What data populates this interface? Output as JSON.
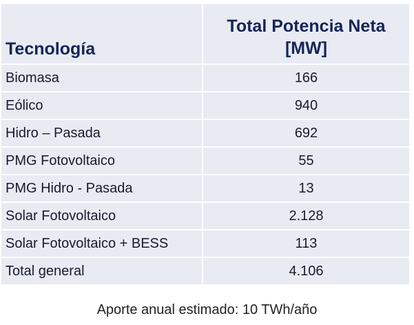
{
  "table": {
    "headers": [
      "Tecnología",
      "Total Potencia Neta [MW]"
    ],
    "rows": [
      {
        "tech": "Biomasa",
        "mw": "166"
      },
      {
        "tech": "Eólico",
        "mw": "940"
      },
      {
        "tech": "Hidro – Pasada",
        "mw": "692"
      },
      {
        "tech": "PMG Fotovoltaico",
        "mw": "55"
      },
      {
        "tech": "PMG Hidro - Pasada",
        "mw": "13"
      },
      {
        "tech": "Solar Fotovoltaico",
        "mw": "2.128"
      },
      {
        "tech": "Solar Fotovoltaico + BESS",
        "mw": "113"
      },
      {
        "tech": "Total general",
        "mw": "4.106"
      }
    ]
  },
  "caption": "Aporte anual estimado: 10 TWh/año"
}
